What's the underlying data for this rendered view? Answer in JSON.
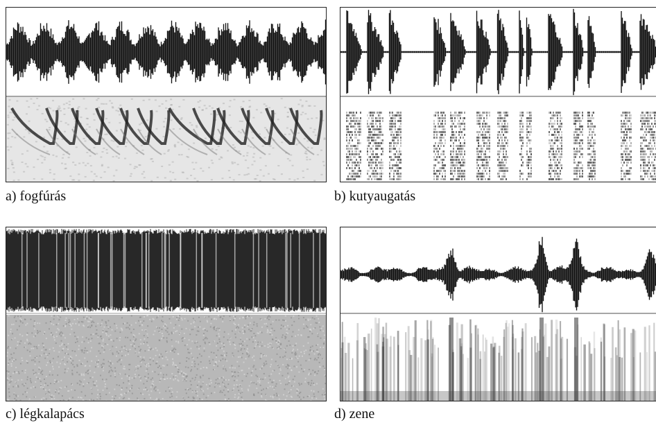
{
  "panels": [
    {
      "id": "a",
      "caption": "a) fogfúrás"
    },
    {
      "id": "b",
      "caption": "b) kutyaugatás"
    },
    {
      "id": "c",
      "caption": "c) légkalapács"
    },
    {
      "id": "d",
      "caption": "d) zene"
    }
  ],
  "colors": {
    "ink": "#111111",
    "background": "#ffffff",
    "divider": "#888888"
  }
}
